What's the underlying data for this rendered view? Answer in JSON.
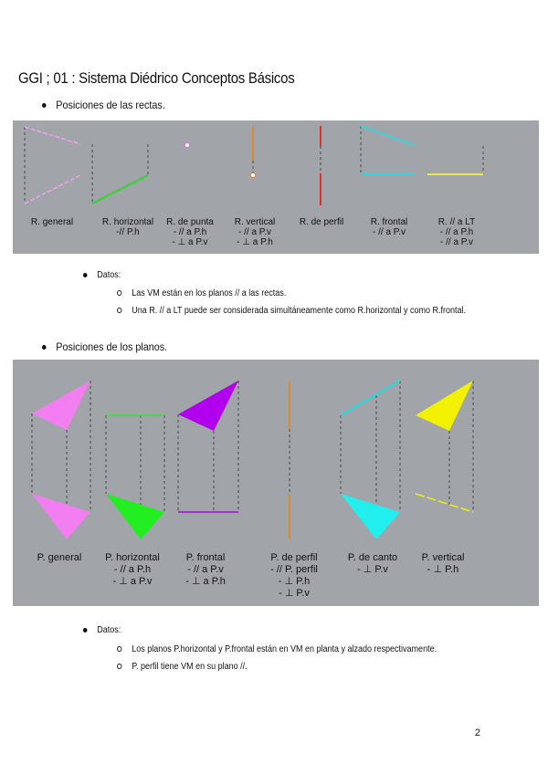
{
  "title": "GGI ; 01 : Sistema Diédrico Conceptos Básicos",
  "section1": {
    "heading": "Posiciones de las rectas.",
    "figure_labels": [
      {
        "name": "R. general",
        "lines": []
      },
      {
        "name": "R. horizontal",
        "lines": [
          "-// P.h"
        ]
      },
      {
        "name": "R. de punta",
        "lines": [
          "- // a P.h",
          "- ⊥ a P.v"
        ]
      },
      {
        "name": "R. vertical",
        "lines": [
          "- // a P.v",
          "- ⊥ a P.h"
        ]
      },
      {
        "name": "R. de perfil",
        "lines": []
      },
      {
        "name": "R. frontal",
        "lines": [
          "- // a P.v"
        ]
      },
      {
        "name": "R. // a LT",
        "lines": [
          "- // a P.h",
          "- // a P.v"
        ]
      }
    ],
    "datos_label": "Datos:",
    "datos": [
      "Las VM están en los planos // a las rectas.",
      "Una R. // a LT puede ser considerada simultáneamente como R.horizontal y como R.frontal."
    ]
  },
  "section2": {
    "heading": "Posiciones de los planos.",
    "figure_labels": [
      {
        "name": "P. general",
        "lines": []
      },
      {
        "name": "P. horizontal",
        "lines": [
          "- // a P.h",
          "- ⊥ a P.v"
        ]
      },
      {
        "name": "P. frontal",
        "lines": [
          "- // a P.v",
          "- ⊥ a P.h"
        ]
      },
      {
        "name": "P. de perfil",
        "lines": [
          "- // P. perfil",
          "- ⊥ P.h",
          "- ⊥ P.v"
        ]
      },
      {
        "name": "P. de canto",
        "lines": [
          "- ⊥ P.v"
        ]
      },
      {
        "name": "P. vertical",
        "lines": [
          "- ⊥ P.h"
        ]
      }
    ],
    "datos_label": "Datos:",
    "datos": [
      "Los planos P.horizontal  y  P.frontal están en VM en planta y alzado respectivamente.",
      "P. perfil tiene VM en su plano //."
    ]
  },
  "page_number": "2",
  "colors": {
    "figure_bg": "#a1a5a9",
    "pink": "#f07ef0",
    "green": "#22ee22",
    "purple": "#b000ee",
    "orange": "#e08a30",
    "red": "#e03030",
    "cyan": "#22eeee",
    "yellow": "#f2f200"
  }
}
